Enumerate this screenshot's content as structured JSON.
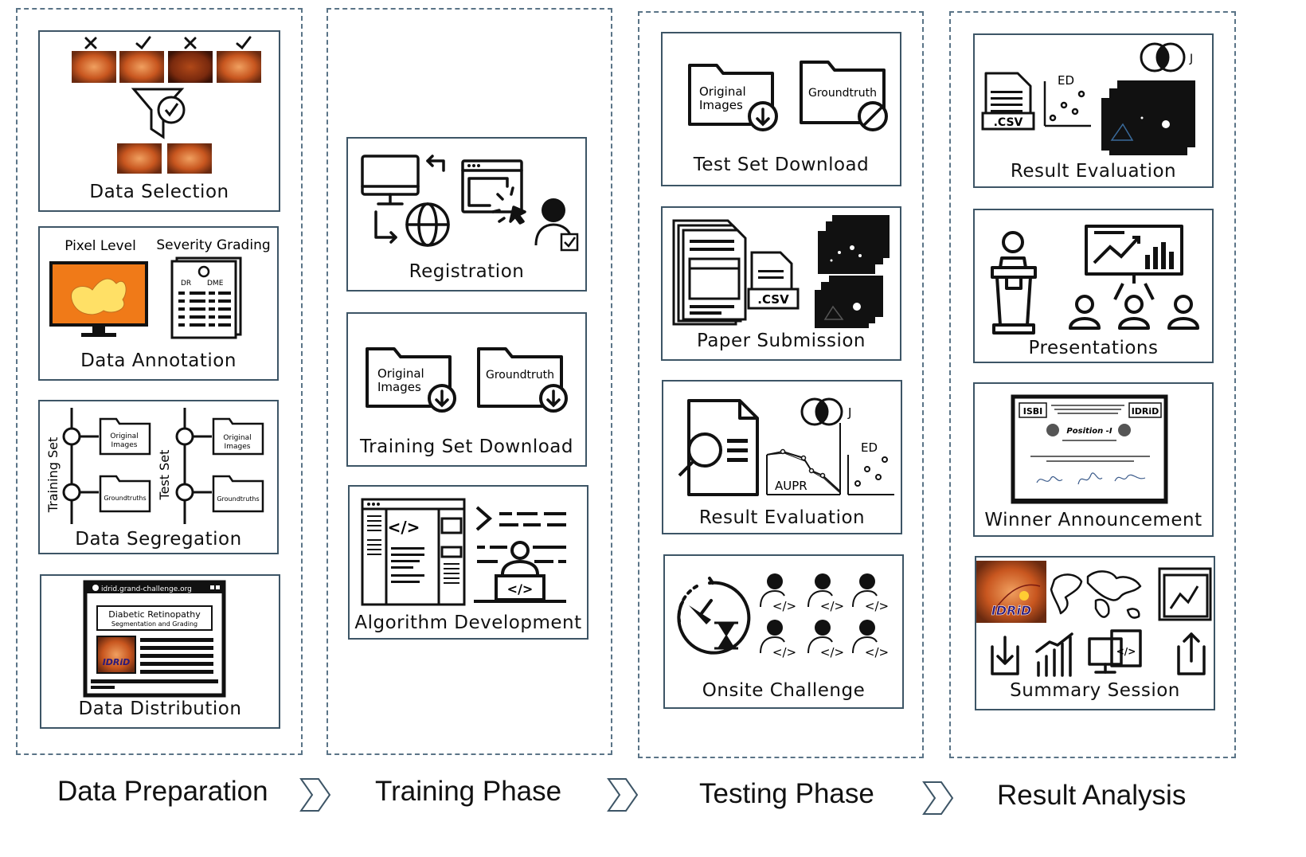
{
  "phases": [
    {
      "title": "Data Preparation"
    },
    {
      "title": "Training Phase"
    },
    {
      "title": "Testing Phase"
    },
    {
      "title": "Result Analysis"
    }
  ],
  "data_preparation": {
    "data_selection": {
      "caption": "Data Selection"
    },
    "data_annotation": {
      "caption": "Data Annotation",
      "pixel_level": "Pixel Level",
      "severity_grading": "Severity Grading",
      "dr": "DR",
      "dme": "DME"
    },
    "data_segregation": {
      "caption": "Data Segregation",
      "training_set": "Training Set",
      "test_set": "Test Set",
      "original_line1": "Original",
      "original_line2": "Images",
      "groundtruths": "Groundtruths"
    },
    "data_distribution": {
      "caption": "Data Distribution",
      "url": "idrid.grand-challenge.org",
      "heading_line1": "Diabetic Retinopathy",
      "heading_line2": "Segmentation and Grading",
      "logo": "IDRiD"
    }
  },
  "training_phase": {
    "registration": {
      "caption": "Registration"
    },
    "training_set_download": {
      "caption": "Training Set Download",
      "original_line1": "Original",
      "original_line2": "Images",
      "groundtruth": "Groundtruth"
    },
    "algorithm_development": {
      "caption": "Algorithm Development",
      "code_tag": "</>"
    }
  },
  "testing_phase": {
    "test_set_download": {
      "caption": "Test Set Download",
      "original_line1": "Original",
      "original_line2": "Images",
      "groundtruth": "Groundtruth"
    },
    "paper_submission": {
      "caption": "Paper Submission",
      "csv": ".CSV"
    },
    "result_evaluation": {
      "caption": "Result Evaluation",
      "j": "J",
      "ed": "ED",
      "aupr": "AUPR"
    },
    "onsite_challenge": {
      "caption": "Onsite Challenge"
    }
  },
  "result_analysis": {
    "result_evaluation": {
      "caption": "Result Evaluation",
      "csv": ".CSV",
      "ed": "ED",
      "j": "J"
    },
    "presentations": {
      "caption": "Presentations"
    },
    "winner_announcement": {
      "caption": "Winner Announcement",
      "isbi": "ISBI",
      "idrid": "IDRiD",
      "position": "Position -I"
    },
    "summary_session": {
      "caption": "Summary Session",
      "logo": "IDRiD"
    }
  },
  "colors": {
    "border": "#3d5566",
    "dashed": "#5a7487",
    "fundus": "#c8561f",
    "heatmap_bg": "#f07a18",
    "heatmap_fg": "#ffe066"
  }
}
